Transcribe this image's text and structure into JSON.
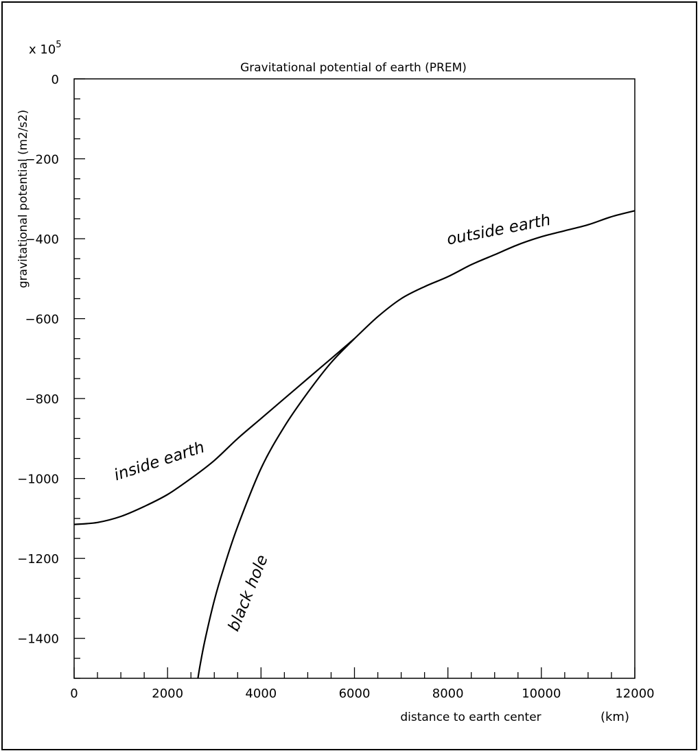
{
  "chart_data": {
    "type": "line",
    "title": "Gravitational potential of earth (PREM)",
    "xlabel": "distance to earth center",
    "xunit": "(km)",
    "ylabel": "gravitational potential (m2/s2)",
    "yscale_label": "x 10",
    "yscale_exponent": "5",
    "xlim": [
      0,
      12000
    ],
    "ylim": [
      -1500,
      0
    ],
    "xticks": [
      0,
      2000,
      4000,
      6000,
      8000,
      10000,
      12000
    ],
    "yticks": [
      0,
      -200,
      -400,
      -600,
      -800,
      -1000,
      -1200,
      -1400
    ],
    "xtick_labels": [
      "0",
      "2000",
      "4000",
      "6000",
      "8000",
      "10000",
      "12000"
    ],
    "ytick_labels": [
      "0",
      "−200",
      "−400",
      "−600",
      "−800",
      "−1000",
      "−1200",
      "−1400"
    ],
    "grid": false,
    "series": [
      {
        "name": "inside earth",
        "x": [
          0,
          500,
          1000,
          1500,
          2000,
          2500,
          3000,
          3500,
          4000,
          4500,
          5000,
          5500,
          6000
        ],
        "y": [
          -1115,
          -1110,
          -1095,
          -1070,
          -1040,
          -1000,
          -955,
          -900,
          -850,
          -800,
          -750,
          -700,
          -650
        ]
      },
      {
        "name": "black hole",
        "x": [
          2650,
          2700,
          2800,
          3000,
          3200,
          3500,
          4000,
          4500,
          5000,
          5500,
          6000
        ],
        "y": [
          -1500,
          -1465,
          -1405,
          -1305,
          -1225,
          -1120,
          -975,
          -870,
          -785,
          -710,
          -650
        ]
      },
      {
        "name": "outside earth",
        "x": [
          6000,
          6500,
          7000,
          7500,
          8000,
          8500,
          9000,
          9500,
          10000,
          10500,
          11000,
          11500,
          12000
        ],
        "y": [
          -650,
          -595,
          -550,
          -520,
          -495,
          -465,
          -440,
          -415,
          -395,
          -380,
          -365,
          -345,
          -330
        ]
      }
    ],
    "annotations": [
      {
        "text": "inside earth"
      },
      {
        "text": "black hole"
      },
      {
        "text": "outside earth"
      }
    ]
  }
}
